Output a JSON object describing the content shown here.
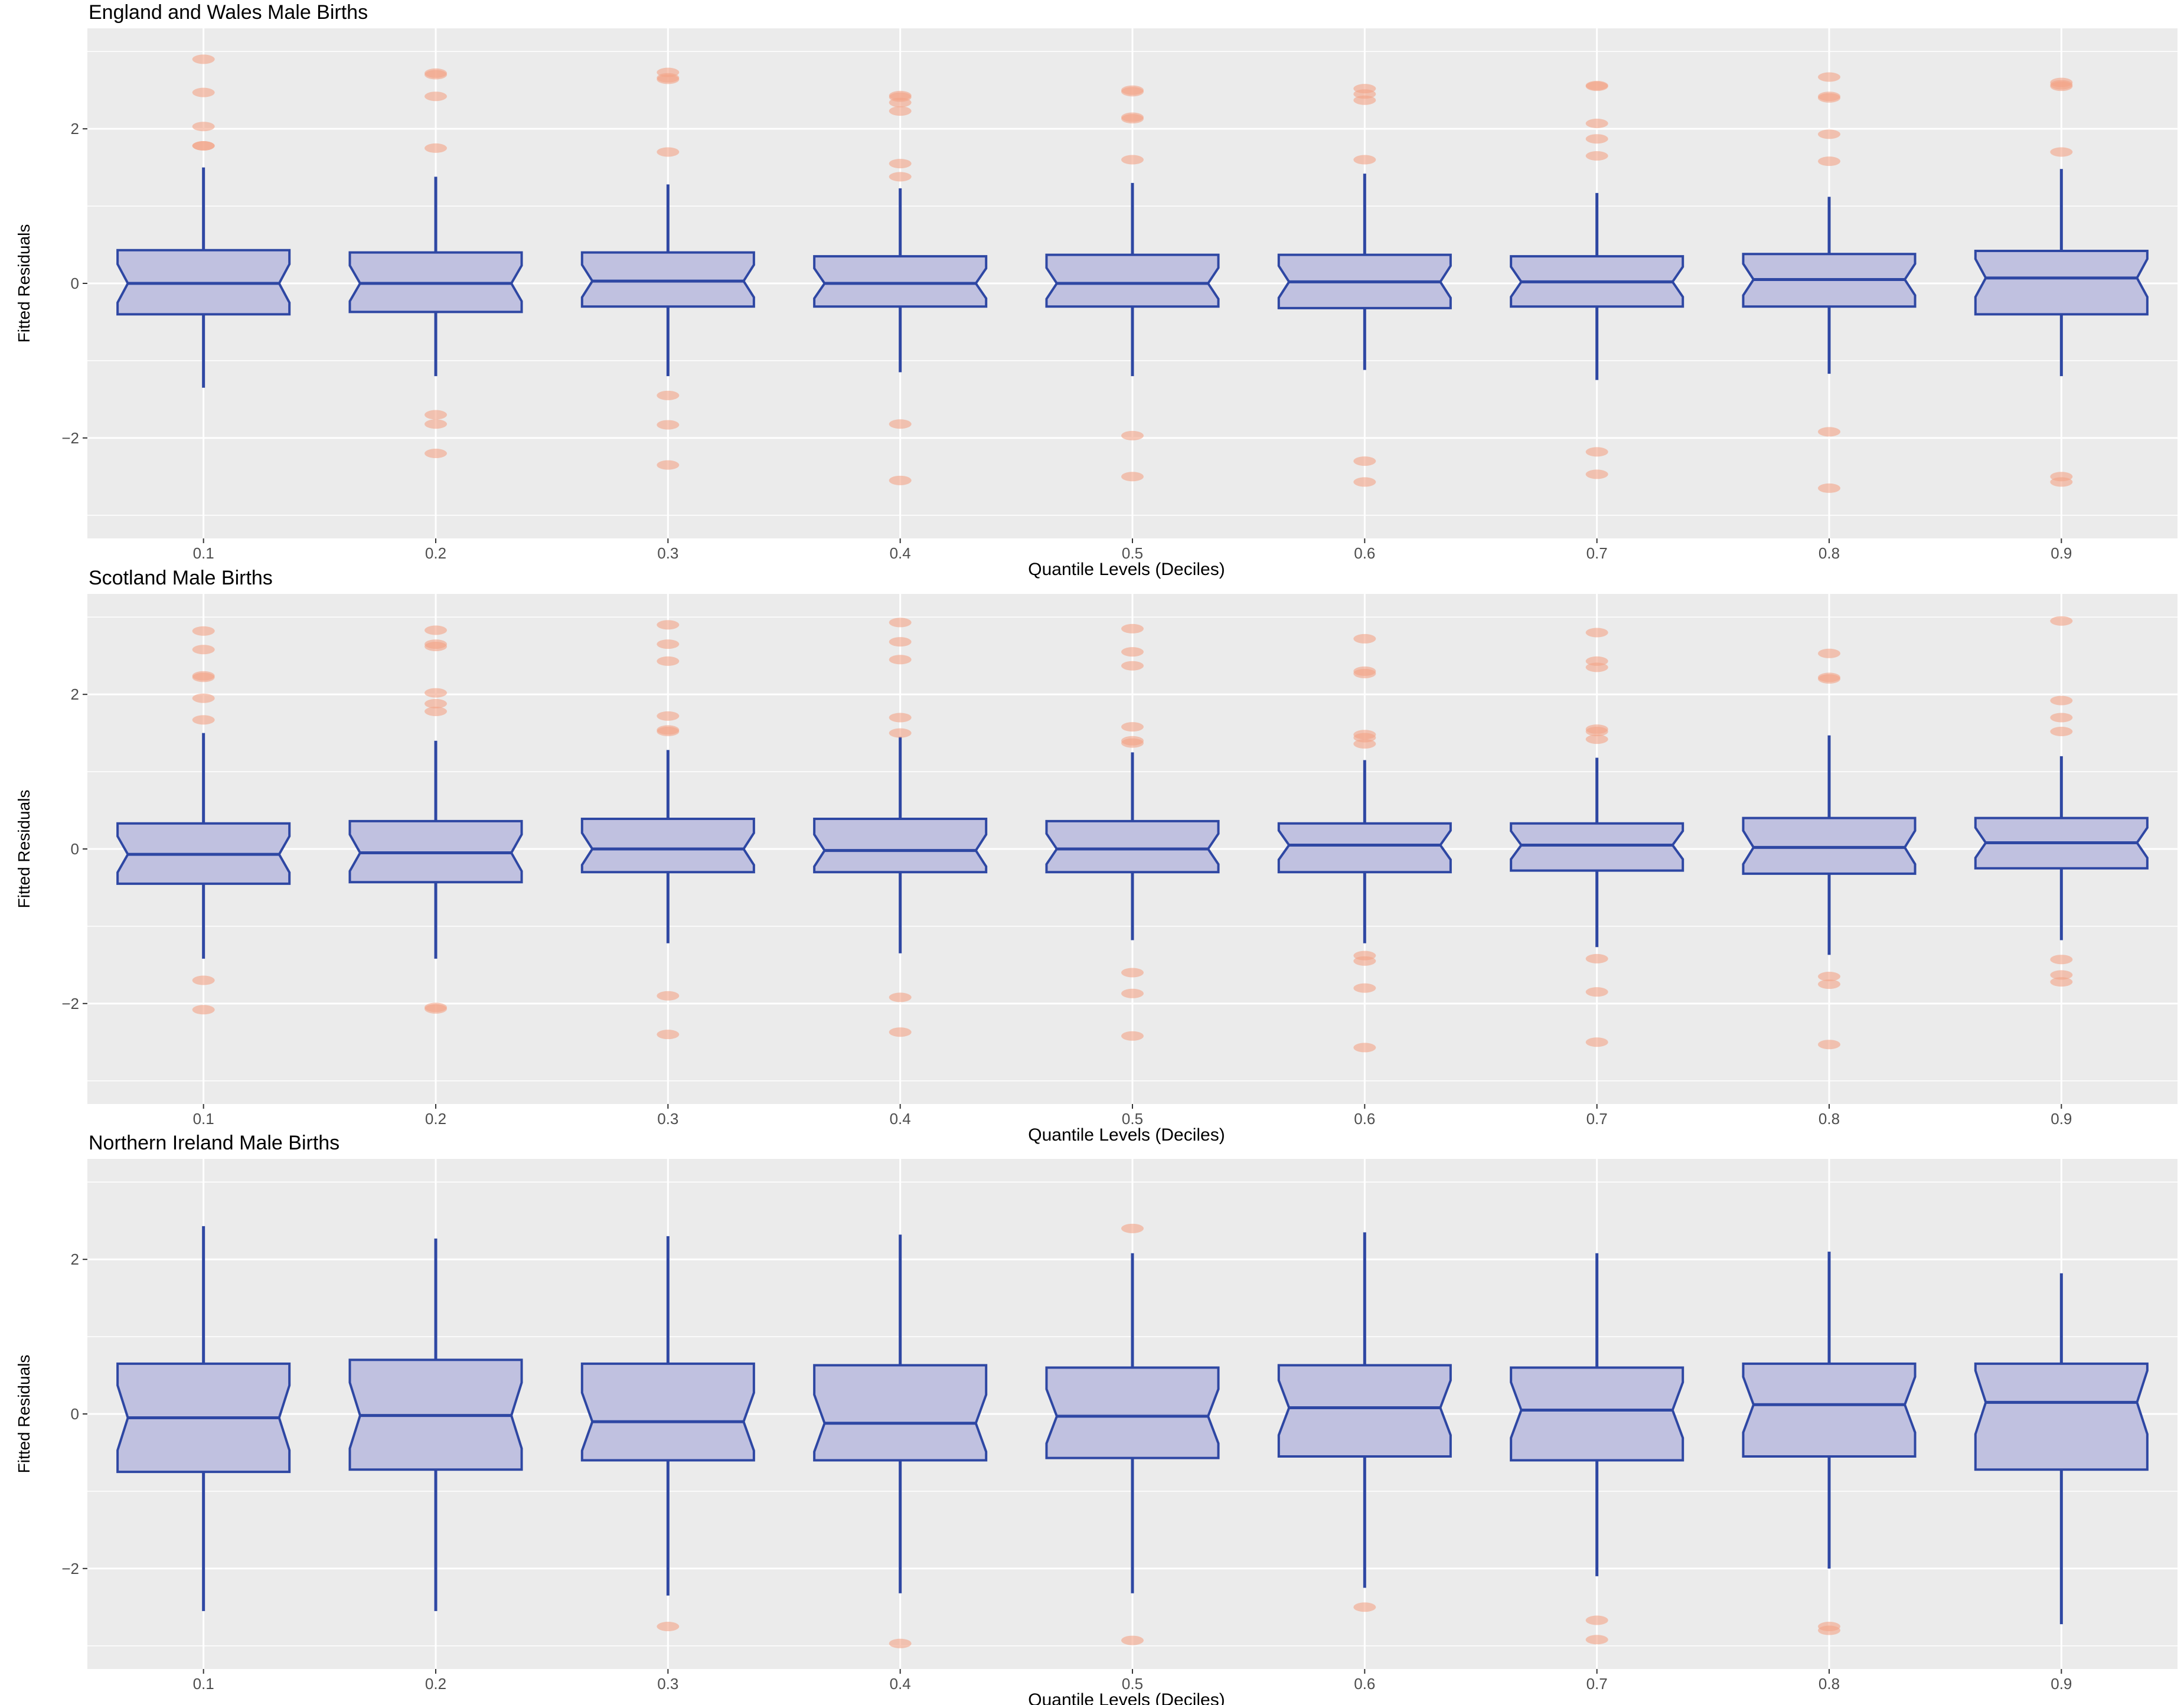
{
  "colors": {
    "panel_bg": "#ebebeb",
    "grid": "#ffffff",
    "box_fill": "#c0c1e0",
    "box_stroke": "#2e47a3",
    "outlier": "#f4a487",
    "tick_text": "#4d4d4d"
  },
  "chart_data": [
    {
      "type": "boxplot",
      "title": "England and Wales Male Births",
      "xlabel": "Quantile Levels (Deciles)",
      "ylabel": "Fitted Residuals",
      "categories": [
        "0.1",
        "0.2",
        "0.3",
        "0.4",
        "0.5",
        "0.6",
        "0.7",
        "0.8",
        "0.9"
      ],
      "yticks": [
        -2,
        0,
        2
      ],
      "ytick_labels": [
        "−2",
        "0",
        "2"
      ],
      "ylim": [
        -3.3,
        3.3
      ],
      "notched": true,
      "grid": true,
      "boxes": [
        {
          "q1": -0.4,
          "median": 0.0,
          "q3": 0.43,
          "lower_whisker": -1.35,
          "upper_whisker": 1.5,
          "outliers": [
            2.9,
            2.47,
            2.03,
            1.78,
            1.78
          ]
        },
        {
          "q1": -0.37,
          "median": 0.0,
          "q3": 0.4,
          "lower_whisker": -1.2,
          "upper_whisker": 1.38,
          "outliers": [
            2.72,
            2.7,
            2.42,
            1.75,
            -1.7,
            -1.82,
            -2.2
          ]
        },
        {
          "q1": -0.3,
          "median": 0.03,
          "q3": 0.4,
          "lower_whisker": -1.2,
          "upper_whisker": 1.28,
          "outliers": [
            2.73,
            2.66,
            2.64,
            1.7,
            -1.45,
            -1.83,
            -2.35
          ]
        },
        {
          "q1": -0.3,
          "median": 0.0,
          "q3": 0.35,
          "lower_whisker": -1.15,
          "upper_whisker": 1.23,
          "outliers": [
            2.43,
            2.41,
            2.34,
            2.23,
            1.55,
            1.38,
            -1.82,
            -2.55
          ]
        },
        {
          "q1": -0.3,
          "median": 0.0,
          "q3": 0.37,
          "lower_whisker": -1.2,
          "upper_whisker": 1.3,
          "outliers": [
            2.5,
            2.48,
            2.15,
            2.13,
            1.6,
            -1.97,
            -2.5
          ]
        },
        {
          "q1": -0.32,
          "median": 0.02,
          "q3": 0.37,
          "lower_whisker": -1.12,
          "upper_whisker": 1.42,
          "outliers": [
            2.52,
            2.45,
            2.37,
            1.6,
            -2.3,
            -2.57
          ]
        },
        {
          "q1": -0.3,
          "median": 0.02,
          "q3": 0.35,
          "lower_whisker": -1.25,
          "upper_whisker": 1.17,
          "outliers": [
            2.56,
            2.55,
            2.07,
            1.87,
            1.65,
            -2.18,
            -2.47
          ]
        },
        {
          "q1": -0.3,
          "median": 0.05,
          "q3": 0.38,
          "lower_whisker": -1.17,
          "upper_whisker": 1.12,
          "outliers": [
            2.67,
            2.42,
            2.4,
            1.93,
            1.58,
            -1.92,
            -2.65
          ]
        },
        {
          "q1": -0.4,
          "median": 0.07,
          "q3": 0.42,
          "lower_whisker": -1.2,
          "upper_whisker": 1.48,
          "outliers": [
            2.6,
            2.57,
            2.55,
            1.7,
            -2.5,
            -2.57
          ]
        }
      ]
    },
    {
      "type": "boxplot",
      "title": "Scotland Male Births",
      "xlabel": "Quantile Levels (Deciles)",
      "ylabel": "Fitted Residuals",
      "categories": [
        "0.1",
        "0.2",
        "0.3",
        "0.4",
        "0.5",
        "0.6",
        "0.7",
        "0.8",
        "0.9"
      ],
      "yticks": [
        -2,
        0,
        2
      ],
      "ytick_labels": [
        "−2",
        "0",
        "2"
      ],
      "ylim": [
        -3.3,
        3.3
      ],
      "notched": true,
      "grid": true,
      "boxes": [
        {
          "q1": -0.45,
          "median": -0.07,
          "q3": 0.33,
          "lower_whisker": -1.42,
          "upper_whisker": 1.5,
          "outliers": [
            2.82,
            2.58,
            2.24,
            2.22,
            1.95,
            1.67,
            -1.7,
            -2.08
          ]
        },
        {
          "q1": -0.43,
          "median": -0.05,
          "q3": 0.36,
          "lower_whisker": -1.42,
          "upper_whisker": 1.4,
          "outliers": [
            2.83,
            2.65,
            2.62,
            2.02,
            1.88,
            1.78,
            -2.05,
            -2.07
          ]
        },
        {
          "q1": -0.3,
          "median": 0.0,
          "q3": 0.39,
          "lower_whisker": -1.22,
          "upper_whisker": 1.28,
          "outliers": [
            2.9,
            2.65,
            2.43,
            1.72,
            1.54,
            1.52,
            -1.9,
            -2.4
          ]
        },
        {
          "q1": -0.3,
          "median": -0.02,
          "q3": 0.39,
          "lower_whisker": -1.35,
          "upper_whisker": 1.45,
          "outliers": [
            2.93,
            2.68,
            2.45,
            1.7,
            1.5,
            -1.92,
            -2.37
          ]
        },
        {
          "q1": -0.3,
          "median": 0.0,
          "q3": 0.36,
          "lower_whisker": -1.18,
          "upper_whisker": 1.25,
          "outliers": [
            2.85,
            2.55,
            2.37,
            1.58,
            1.4,
            1.37,
            -1.6,
            -1.87,
            -2.42
          ]
        },
        {
          "q1": -0.3,
          "median": 0.05,
          "q3": 0.33,
          "lower_whisker": -1.22,
          "upper_whisker": 1.15,
          "outliers": [
            2.72,
            2.3,
            2.27,
            1.48,
            1.44,
            1.36,
            -1.38,
            -1.45,
            -1.8,
            -2.57
          ]
        },
        {
          "q1": -0.28,
          "median": 0.05,
          "q3": 0.33,
          "lower_whisker": -1.27,
          "upper_whisker": 1.18,
          "outliers": [
            2.8,
            2.43,
            2.35,
            1.55,
            1.52,
            1.42,
            -1.42,
            -1.85,
            -2.5
          ]
        },
        {
          "q1": -0.32,
          "median": 0.02,
          "q3": 0.4,
          "lower_whisker": -1.37,
          "upper_whisker": 1.47,
          "outliers": [
            2.53,
            2.22,
            2.2,
            -1.65,
            -1.75,
            -2.53
          ]
        },
        {
          "q1": -0.25,
          "median": 0.08,
          "q3": 0.4,
          "lower_whisker": -1.18,
          "upper_whisker": 1.2,
          "outliers": [
            2.95,
            1.92,
            1.7,
            1.52,
            -1.43,
            -1.63,
            -1.72
          ]
        }
      ]
    },
    {
      "type": "boxplot",
      "title": "Northern Ireland Male Births",
      "xlabel": "Quantile Levels (Deciles)",
      "ylabel": "Fitted Residuals",
      "categories": [
        "0.1",
        "0.2",
        "0.3",
        "0.4",
        "0.5",
        "0.6",
        "0.7",
        "0.8",
        "0.9"
      ],
      "yticks": [
        -2,
        0,
        2
      ],
      "ytick_labels": [
        "−2",
        "0",
        "2"
      ],
      "ylim": [
        -3.3,
        3.3
      ],
      "notched": true,
      "grid": true,
      "boxes": [
        {
          "q1": -0.75,
          "median": -0.05,
          "q3": 0.65,
          "lower_whisker": -2.55,
          "upper_whisker": 2.43,
          "outliers": []
        },
        {
          "q1": -0.72,
          "median": -0.02,
          "q3": 0.7,
          "lower_whisker": -2.55,
          "upper_whisker": 2.27,
          "outliers": []
        },
        {
          "q1": -0.6,
          "median": -0.1,
          "q3": 0.65,
          "lower_whisker": -2.35,
          "upper_whisker": 2.3,
          "outliers": [
            -2.75
          ]
        },
        {
          "q1": -0.6,
          "median": -0.12,
          "q3": 0.63,
          "lower_whisker": -2.32,
          "upper_whisker": 2.32,
          "outliers": [
            -2.97
          ]
        },
        {
          "q1": -0.57,
          "median": -0.03,
          "q3": 0.6,
          "lower_whisker": -2.32,
          "upper_whisker": 2.08,
          "outliers": [
            2.4,
            -2.93
          ]
        },
        {
          "q1": -0.55,
          "median": 0.08,
          "q3": 0.63,
          "lower_whisker": -2.25,
          "upper_whisker": 2.35,
          "outliers": [
            -2.5
          ]
        },
        {
          "q1": -0.6,
          "median": 0.05,
          "q3": 0.6,
          "lower_whisker": -2.1,
          "upper_whisker": 2.08,
          "outliers": [
            -2.67,
            -2.92
          ]
        },
        {
          "q1": -0.55,
          "median": 0.12,
          "q3": 0.65,
          "lower_whisker": -2.0,
          "upper_whisker": 2.1,
          "outliers": [
            -2.75,
            -2.8
          ]
        },
        {
          "q1": -0.72,
          "median": 0.15,
          "q3": 0.65,
          "lower_whisker": -2.72,
          "upper_whisker": 1.82,
          "outliers": []
        }
      ]
    }
  ]
}
